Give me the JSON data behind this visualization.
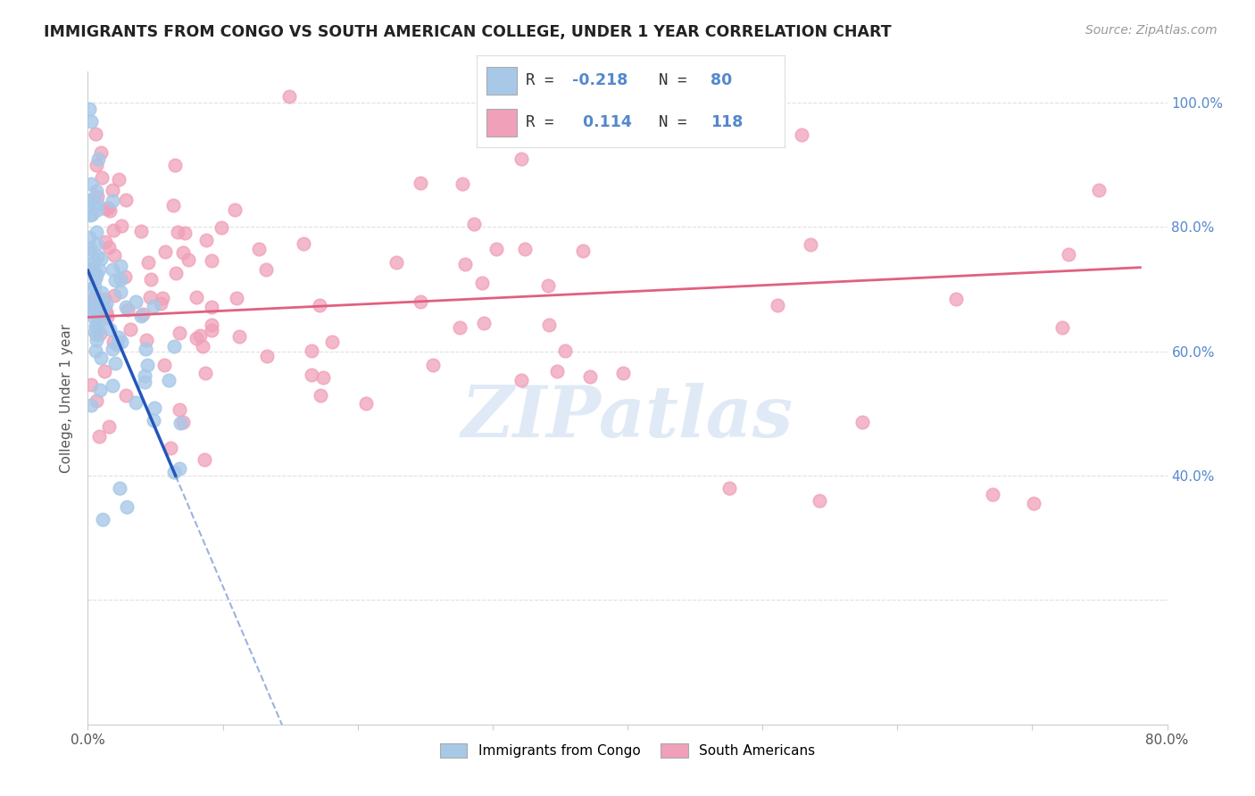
{
  "title": "IMMIGRANTS FROM CONGO VS SOUTH AMERICAN COLLEGE, UNDER 1 YEAR CORRELATION CHART",
  "source": "Source: ZipAtlas.com",
  "ylabel": "College, Under 1 year",
  "xlim": [
    0.0,
    0.8
  ],
  "ylim": [
    0.0,
    1.05
  ],
  "x_tick_positions": [
    0.0,
    0.1,
    0.2,
    0.3,
    0.4,
    0.5,
    0.6,
    0.7,
    0.8
  ],
  "x_tick_labels": [
    "0.0%",
    "",
    "",
    "",
    "",
    "",
    "",
    "",
    "80.0%"
  ],
  "y_ticks_left": [
    0.0,
    0.2,
    0.4,
    0.6,
    0.8,
    1.0
  ],
  "y_tick_right_vals": [
    0.4,
    0.6,
    0.8,
    1.0
  ],
  "y_tick_right_labels": [
    "40.0%",
    "60.0%",
    "80.0%",
    "100.0%"
  ],
  "congo_R": -0.218,
  "congo_N": 80,
  "sa_R": 0.114,
  "sa_N": 118,
  "congo_color": "#a8c8e8",
  "sa_color": "#f0a0b8",
  "congo_line_color": "#2255bb",
  "sa_line_color": "#e06080",
  "congo_line_solid_end": 0.065,
  "congo_line_dash_end": 0.22,
  "sa_line_end": 0.78,
  "legend_label_congo": "Immigrants from Congo",
  "legend_label_sa": "South Americans",
  "watermark": "ZIPatlas",
  "background_color": "#ffffff",
  "grid_color": "#cccccc",
  "title_color": "#222222",
  "source_color": "#999999",
  "right_axis_color": "#5588cc",
  "legend_R_color": "#5588cc",
  "legend_N_color": "#5588cc"
}
